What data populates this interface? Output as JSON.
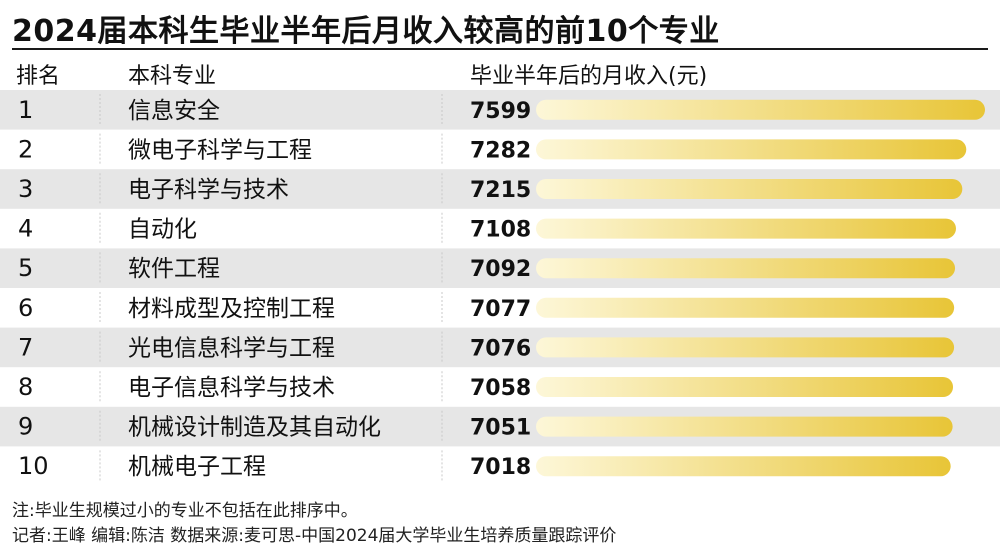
{
  "chart_data": {
    "type": "bar",
    "title": "2024届本科生毕业半年后月收入较高的前10个专业",
    "columns": {
      "rank": "排名",
      "major": "本科专业",
      "value": "毕业半年后的月收入(元)"
    },
    "ranks": [
      "1",
      "2",
      "3",
      "4",
      "5",
      "6",
      "7",
      "8",
      "9",
      "10"
    ],
    "categories": [
      "信息安全",
      "微电子科学与工程",
      "电子科学与技术",
      "自动化",
      "软件工程",
      "材料成型及控制工程",
      "光电信息科学与工程",
      "电子信息科学与技术",
      "机械设计制造及其自动化",
      "机械电子工程"
    ],
    "values": [
      7599,
      7282,
      7215,
      7108,
      7092,
      7077,
      7076,
      7058,
      7051,
      7018
    ],
    "xlim": [
      0,
      7599
    ]
  },
  "notes": {
    "footnote": "注:毕业生规模过小的专业不包括在此排序中。",
    "credits": "记者:王峰 编辑:陈洁 数据来源:麦可思-中国2024届大学毕业生培养质量跟踪评价"
  },
  "colors": {
    "bar_start": "#fdf7d8",
    "bar_end": "#e8c537",
    "stripe": "#e6e6e6",
    "divider": "#c8c8c8",
    "rule": "#1a1a1a"
  }
}
